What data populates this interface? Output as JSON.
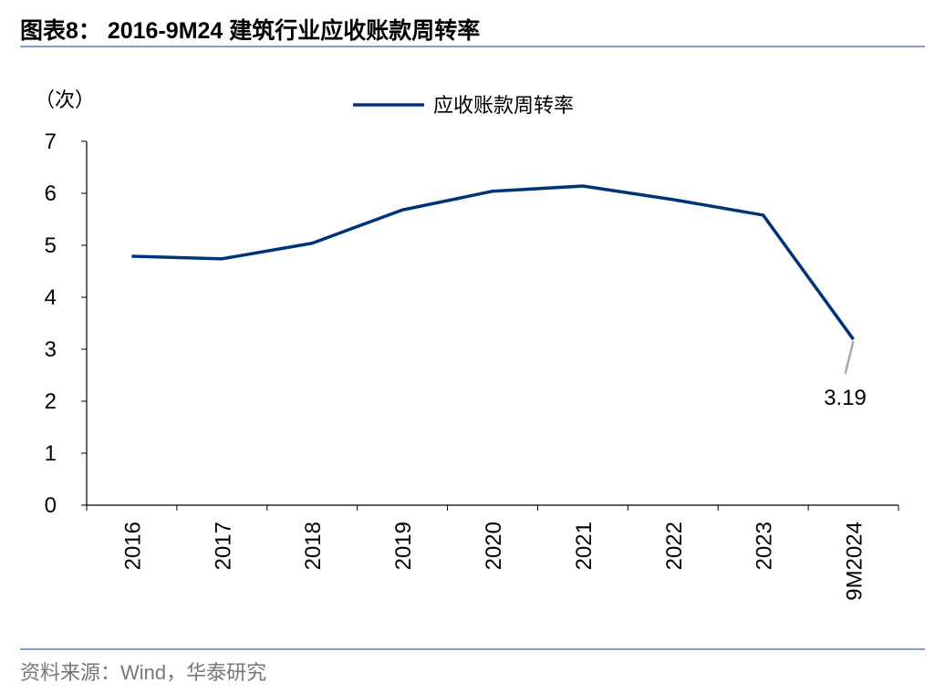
{
  "title": "图表8： 2016-9M24 建筑行业应收账款周转率",
  "source": "资料来源：Wind，华泰研究",
  "chart_data": {
    "type": "line",
    "title": "",
    "ylabel": "（次）",
    "xlabel": "",
    "categories": [
      "2016",
      "2017",
      "2018",
      "2019",
      "2020",
      "2021",
      "2022",
      "2023",
      "9M2024"
    ],
    "series": [
      {
        "name": "应收账款周转率",
        "color": "#003478",
        "values": [
          4.79,
          4.74,
          5.04,
          5.68,
          6.04,
          6.14,
          5.88,
          5.58,
          3.19
        ]
      }
    ],
    "ylim": [
      0,
      7
    ],
    "yticks": [
      0,
      1,
      2,
      3,
      4,
      5,
      6,
      7
    ],
    "grid": false,
    "legend": "top-center",
    "annotations": [
      {
        "category": "9M2024",
        "text": "3.19"
      }
    ]
  }
}
